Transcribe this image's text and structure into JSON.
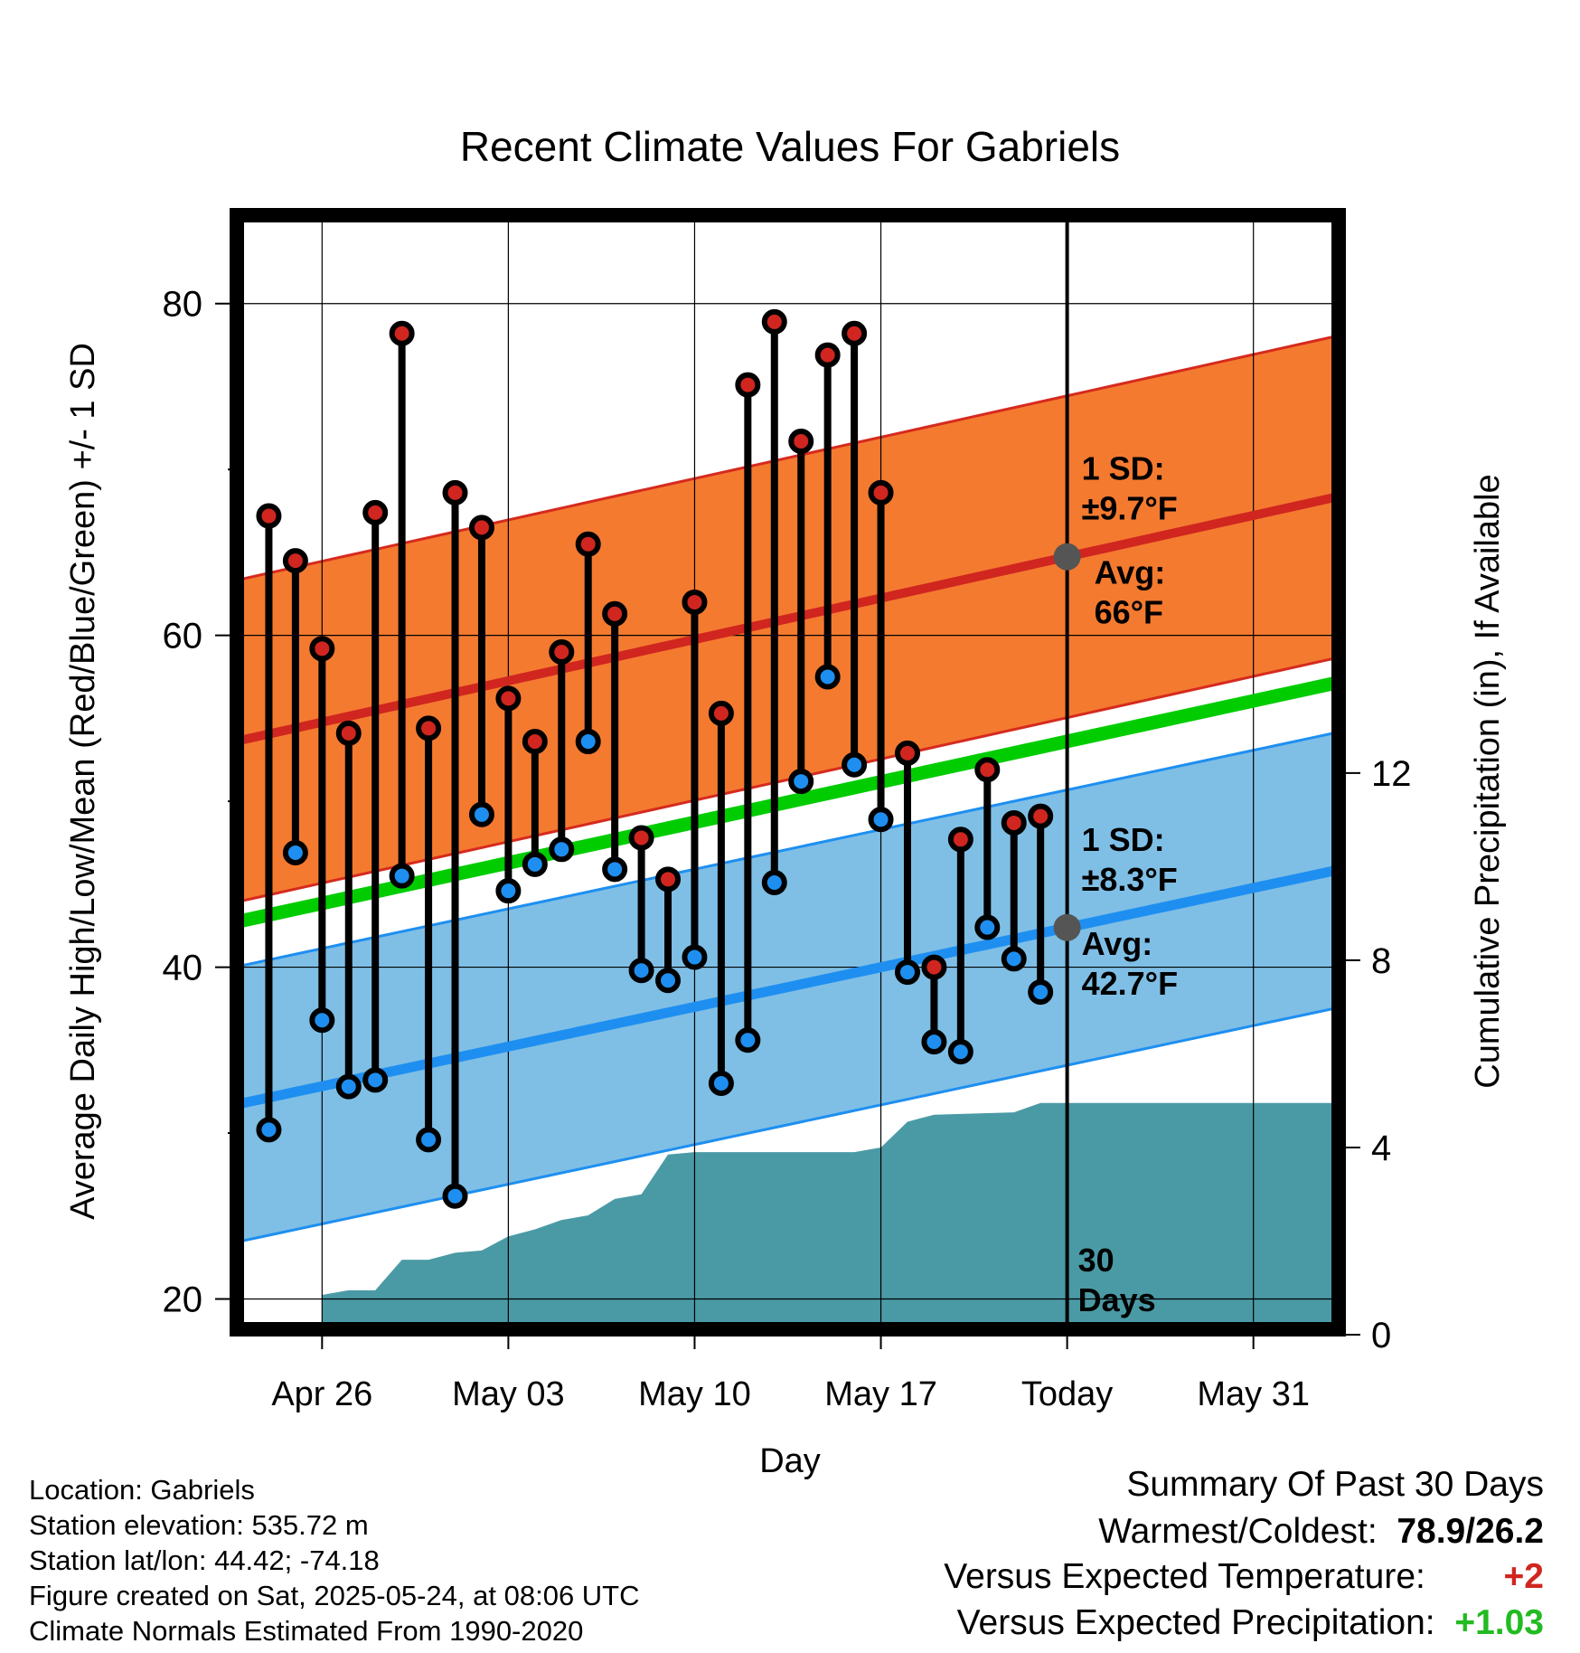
{
  "chart_data": {
    "type": "line",
    "title": "Recent Climate Values For Gabriels",
    "xlabel": "Day",
    "ylabel": "Average Daily High/Low/Mean (Red/Blue/Green) +/- 1 SD",
    "y2label": "Cumulative Precipitation (in), If Available",
    "ylim": [
      18.5,
      85
    ],
    "y2lim": [
      0,
      23.8
    ],
    "yticks": [
      "20",
      "40",
      "60",
      "80"
    ],
    "y2ticks": [
      "0",
      "4",
      "8",
      "12"
    ],
    "xlim": [
      "2025-04-23",
      "2025-06-03"
    ],
    "xticks": [
      {
        "date": "2025-04-26",
        "label": "Apr 26"
      },
      {
        "date": "2025-05-03",
        "label": "May 03"
      },
      {
        "date": "2025-05-10",
        "label": "May 10"
      },
      {
        "date": "2025-05-17",
        "label": "May 17"
      },
      {
        "date": "2025-05-24",
        "label": "Today"
      },
      {
        "date": "2025-05-31",
        "label": "May 31"
      }
    ],
    "grid": true,
    "today": "2025-05-24",
    "today_label": [
      "30",
      "Days"
    ],
    "normals": {
      "high_mean": [
        53.7,
        68.3
      ],
      "high_sd": 9.7,
      "low_mean": [
        31.8,
        45.8
      ],
      "low_sd": 8.3,
      "mean": [
        42.8,
        57.1
      ]
    },
    "annotations": {
      "high_sd": [
        "1 SD:",
        "±9.7°F"
      ],
      "high_avg": [
        "Avg:",
        "66°F"
      ],
      "low_sd": [
        "1 SD:",
        "±8.3°F"
      ],
      "low_avg": [
        "Avg:",
        "42.7°F"
      ]
    },
    "daily": [
      {
        "date": "2025-04-24",
        "high": 67.2,
        "low": 30.2
      },
      {
        "date": "2025-04-25",
        "high": 64.5,
        "low": 46.9
      },
      {
        "date": "2025-04-26",
        "high": 59.2,
        "low": 36.8
      },
      {
        "date": "2025-04-27",
        "high": 54.1,
        "low": 32.8
      },
      {
        "date": "2025-04-28",
        "high": 67.4,
        "low": 33.2
      },
      {
        "date": "2025-04-29",
        "high": 78.2,
        "low": 45.5
      },
      {
        "date": "2025-04-30",
        "high": 54.4,
        "low": 29.6
      },
      {
        "date": "2025-05-01",
        "high": 68.6,
        "low": 26.2
      },
      {
        "date": "2025-05-02",
        "high": 66.5,
        "low": 49.2
      },
      {
        "date": "2025-05-03",
        "high": 56.2,
        "low": 44.6
      },
      {
        "date": "2025-05-04",
        "high": 53.6,
        "low": 46.2
      },
      {
        "date": "2025-05-05",
        "high": 59.0,
        "low": 47.1
      },
      {
        "date": "2025-05-06",
        "high": 65.5,
        "low": 53.6
      },
      {
        "date": "2025-05-07",
        "high": 61.3,
        "low": 45.9
      },
      {
        "date": "2025-05-08",
        "high": 47.8,
        "low": 39.8
      },
      {
        "date": "2025-05-09",
        "high": 45.3,
        "low": 39.2
      },
      {
        "date": "2025-05-10",
        "high": 62.0,
        "low": 40.6
      },
      {
        "date": "2025-05-11",
        "high": 55.3,
        "low": 33.0
      },
      {
        "date": "2025-05-12",
        "high": 75.1,
        "low": 35.6
      },
      {
        "date": "2025-05-13",
        "high": 78.9,
        "low": 45.1
      },
      {
        "date": "2025-05-14",
        "high": 71.7,
        "low": 51.2
      },
      {
        "date": "2025-05-15",
        "high": 76.9,
        "low": 57.5
      },
      {
        "date": "2025-05-16",
        "high": 78.2,
        "low": 52.2
      },
      {
        "date": "2025-05-17",
        "high": 68.6,
        "low": 48.9
      },
      {
        "date": "2025-05-18",
        "high": 52.9,
        "low": 39.7
      },
      {
        "date": "2025-05-19",
        "high": 40.0,
        "low": 35.5
      },
      {
        "date": "2025-05-20",
        "high": 47.7,
        "low": 34.9
      },
      {
        "date": "2025-05-21",
        "high": 51.9,
        "low": 42.4
      },
      {
        "date": "2025-05-22",
        "high": 48.7,
        "low": 40.5
      },
      {
        "date": "2025-05-23",
        "high": 49.1,
        "low": 38.5
      }
    ],
    "precip_cumulative": [
      {
        "date": "2025-04-26",
        "value": 0.0
      },
      {
        "date": "2025-04-26",
        "value": 0.85
      },
      {
        "date": "2025-04-27",
        "value": 0.95
      },
      {
        "date": "2025-04-28",
        "value": 0.95
      },
      {
        "date": "2025-04-29",
        "value": 1.6
      },
      {
        "date": "2025-04-30",
        "value": 1.6
      },
      {
        "date": "2025-05-01",
        "value": 1.75
      },
      {
        "date": "2025-05-02",
        "value": 1.8
      },
      {
        "date": "2025-05-03",
        "value": 2.1
      },
      {
        "date": "2025-05-04",
        "value": 2.25
      },
      {
        "date": "2025-05-05",
        "value": 2.45
      },
      {
        "date": "2025-05-06",
        "value": 2.55
      },
      {
        "date": "2025-05-07",
        "value": 2.9
      },
      {
        "date": "2025-05-08",
        "value": 3.0
      },
      {
        "date": "2025-05-09",
        "value": 3.85
      },
      {
        "date": "2025-05-10",
        "value": 3.9
      },
      {
        "date": "2025-05-16",
        "value": 3.9
      },
      {
        "date": "2025-05-17",
        "value": 4.0
      },
      {
        "date": "2025-05-18",
        "value": 4.55
      },
      {
        "date": "2025-05-19",
        "value": 4.7
      },
      {
        "date": "2025-05-22",
        "value": 4.75
      },
      {
        "date": "2025-05-23",
        "value": 4.95
      },
      {
        "date": "2025-06-03",
        "value": 4.95
      }
    ],
    "colors": {
      "high_band": "#f47a30",
      "high_band_edge": "#d62a1e",
      "high_mean": "#d0261f",
      "low_band": "#7fbfe6",
      "low_band_edge": "#1e8ff0",
      "low_mean": "#1e8ff0",
      "mean": "#00cc00",
      "precip": "#4a9aa5",
      "high_dot": "#d0261f",
      "low_dot": "#1e8ff0",
      "annotation": "#4d4d4d"
    }
  },
  "info": {
    "location": "Location: Gabriels",
    "elevation": "Station elevation: 535.72 m",
    "latlon": "Station lat/lon: 44.42; -74.18",
    "created": "Figure created on Sat, 2025-05-24, at 08:06 UTC",
    "normals": "Climate Normals Estimated From 1990-2020"
  },
  "summary": {
    "title": "Summary Of Past 30 Days",
    "warm_cold_label": "Warmest/Coldest:",
    "warm_cold_value": "78.9/26.2",
    "temp_label": "Versus Expected Temperature:",
    "temp_value": "+2",
    "temp_color": "#d0261f",
    "precip_label": "Versus Expected Precipitation:",
    "precip_value": "+1.03",
    "precip_color": "#22bb22"
  }
}
